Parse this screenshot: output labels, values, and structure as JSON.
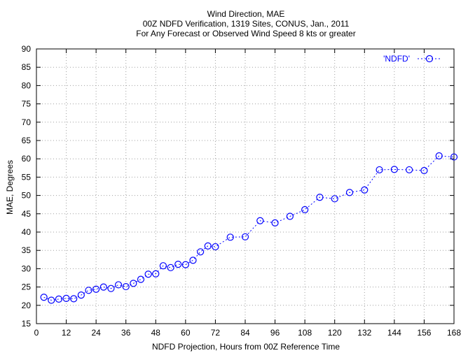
{
  "chart_data": {
    "type": "line",
    "title": [
      "Wind Direction, MAE",
      "00Z NDFD Verification, 1319 Sites, CONUS, Jan., 2011",
      "For Any Forecast or Observed Wind Speed 8 kts or greater"
    ],
    "xlabel": "NDFD Projection, Hours from 00Z Reference Time",
    "ylabel": "MAE, Degrees",
    "xlim": [
      0,
      168
    ],
    "ylim": [
      15,
      90
    ],
    "x_ticks": [
      0,
      12,
      24,
      36,
      48,
      60,
      72,
      84,
      96,
      108,
      120,
      132,
      144,
      156,
      168
    ],
    "y_ticks": [
      15,
      20,
      25,
      30,
      35,
      40,
      45,
      50,
      55,
      60,
      65,
      70,
      75,
      80,
      85,
      90
    ],
    "grid": true,
    "legend_position": "top-right",
    "series": [
      {
        "name": "'NDFD'",
        "color": "#0000ff",
        "marker": "circle",
        "line_style": "dotted",
        "x": [
          3,
          6,
          9,
          12,
          15,
          18,
          21,
          24,
          27,
          30,
          33,
          36,
          39,
          42,
          45,
          48,
          51,
          54,
          57,
          60,
          63,
          66,
          69,
          72,
          78,
          84,
          90,
          96,
          102,
          108,
          114,
          120,
          126,
          132,
          138,
          144,
          150,
          156,
          162,
          168
        ],
        "y": [
          22.2,
          21.4,
          21.7,
          21.9,
          21.8,
          22.8,
          24.1,
          24.4,
          25.0,
          24.6,
          25.6,
          25.1,
          26.0,
          27.1,
          28.5,
          28.6,
          30.8,
          30.3,
          31.2,
          31.1,
          32.3,
          34.6,
          36.2,
          36.0,
          38.6,
          38.7,
          43.1,
          42.5,
          44.3,
          46.1,
          49.5,
          49.1,
          50.8,
          51.5,
          57.0,
          57.1,
          57.0,
          56.8,
          60.8,
          60.5
        ]
      }
    ]
  }
}
